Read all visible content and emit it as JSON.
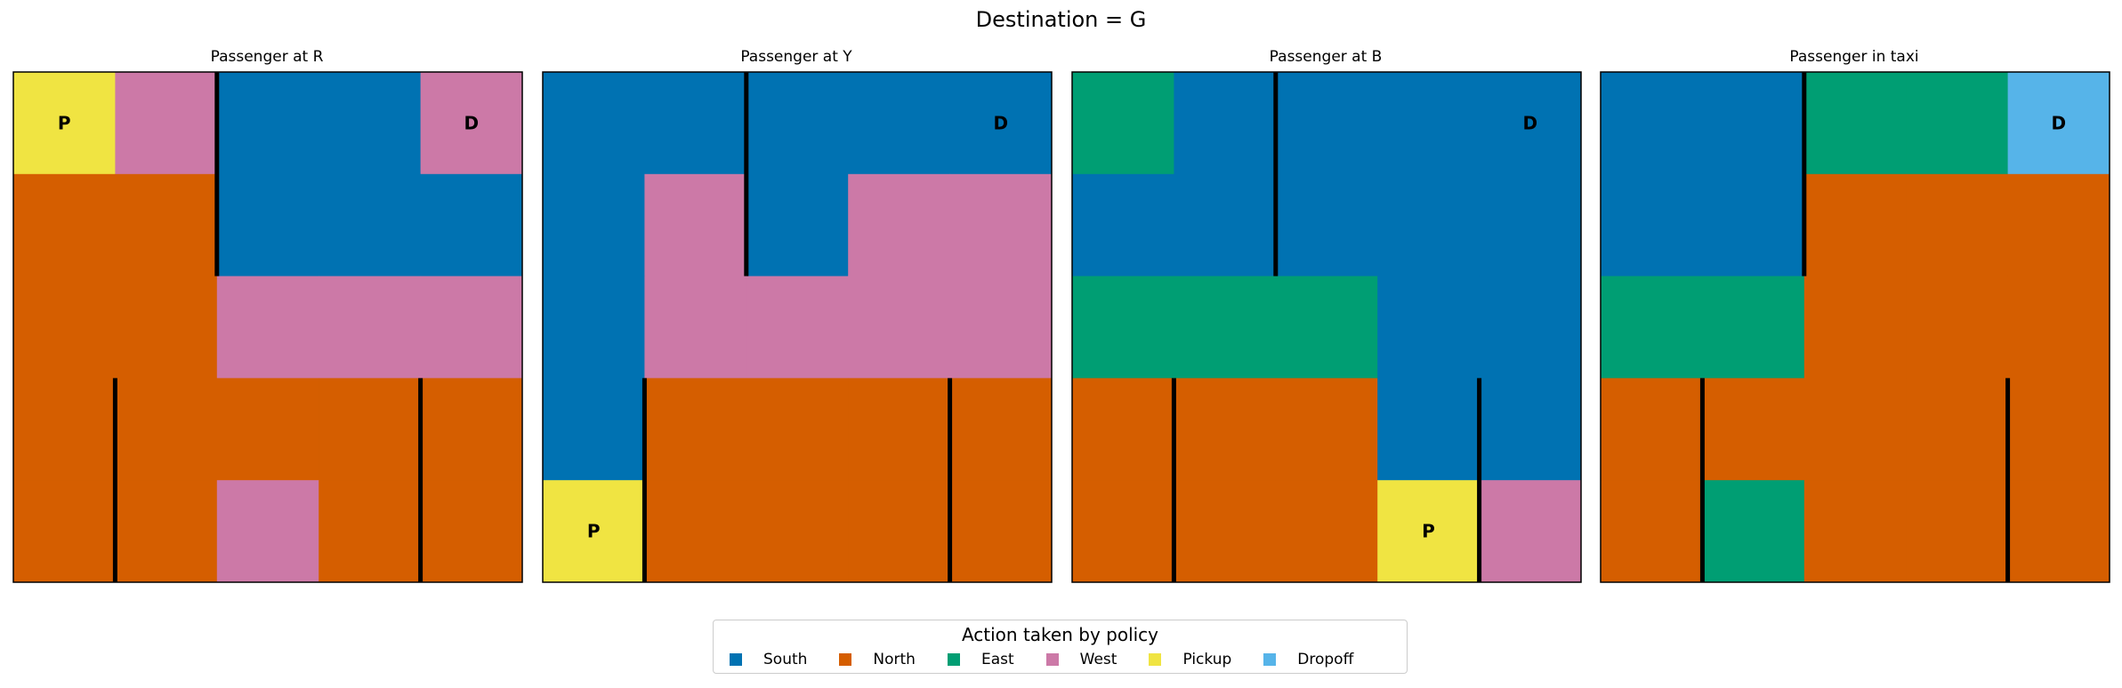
{
  "figure": {
    "suptitle": "Destination = G"
  },
  "colors": {
    "South": "#0072B2",
    "North": "#D55E00",
    "East": "#009E73",
    "West": "#CC79A7",
    "Pickup": "#F0E442",
    "Dropoff": "#56B4E9"
  },
  "chart_data": [
    {
      "type": "heatmap",
      "title": "Passenger at R",
      "grid": [
        [
          "Pickup",
          "West",
          "South",
          "South",
          "West"
        ],
        [
          "North",
          "North",
          "South",
          "South",
          "South"
        ],
        [
          "North",
          "North",
          "West",
          "West",
          "West"
        ],
        [
          "North",
          "North",
          "North",
          "North",
          "North"
        ],
        [
          "North",
          "North",
          "West",
          "North",
          "North"
        ]
      ],
      "markers": [
        {
          "text": "P",
          "row": 0,
          "col": 0
        },
        {
          "text": "D",
          "row": 0,
          "col": 4
        }
      ]
    },
    {
      "type": "heatmap",
      "title": "Passenger at Y",
      "grid": [
        [
          "South",
          "South",
          "South",
          "South",
          "South"
        ],
        [
          "South",
          "West",
          "South",
          "West",
          "West"
        ],
        [
          "South",
          "West",
          "West",
          "West",
          "West"
        ],
        [
          "South",
          "North",
          "North",
          "North",
          "North"
        ],
        [
          "Pickup",
          "North",
          "North",
          "North",
          "North"
        ]
      ],
      "markers": [
        {
          "text": "D",
          "row": 0,
          "col": 4
        },
        {
          "text": "P",
          "row": 4,
          "col": 0
        }
      ]
    },
    {
      "type": "heatmap",
      "title": "Passenger at B",
      "grid": [
        [
          "East",
          "South",
          "South",
          "South",
          "South"
        ],
        [
          "South",
          "South",
          "South",
          "South",
          "South"
        ],
        [
          "East",
          "East",
          "East",
          "South",
          "South"
        ],
        [
          "North",
          "North",
          "North",
          "South",
          "South"
        ],
        [
          "North",
          "North",
          "North",
          "Pickup",
          "West"
        ]
      ],
      "markers": [
        {
          "text": "D",
          "row": 0,
          "col": 4
        },
        {
          "text": "P",
          "row": 4,
          "col": 3
        }
      ]
    },
    {
      "type": "heatmap",
      "title": "Passenger in taxi",
      "grid": [
        [
          "South",
          "South",
          "East",
          "East",
          "Dropoff"
        ],
        [
          "South",
          "South",
          "North",
          "North",
          "North"
        ],
        [
          "East",
          "East",
          "North",
          "North",
          "North"
        ],
        [
          "North",
          "North",
          "North",
          "North",
          "North"
        ],
        [
          "North",
          "East",
          "North",
          "North",
          "North"
        ]
      ],
      "markers": [
        {
          "text": "D",
          "row": 0,
          "col": 4
        }
      ]
    }
  ],
  "walls": [
    {
      "col_boundary": 2,
      "rows": [
        0,
        1
      ]
    },
    {
      "col_boundary": 1,
      "rows": [
        3,
        4
      ]
    },
    {
      "col_boundary": 4,
      "rows": [
        3,
        4
      ]
    }
  ],
  "legend": {
    "title": "Action taken by policy",
    "placement": "bottom-center",
    "entries": [
      "South",
      "North",
      "East",
      "West",
      "Pickup",
      "Dropoff"
    ]
  }
}
